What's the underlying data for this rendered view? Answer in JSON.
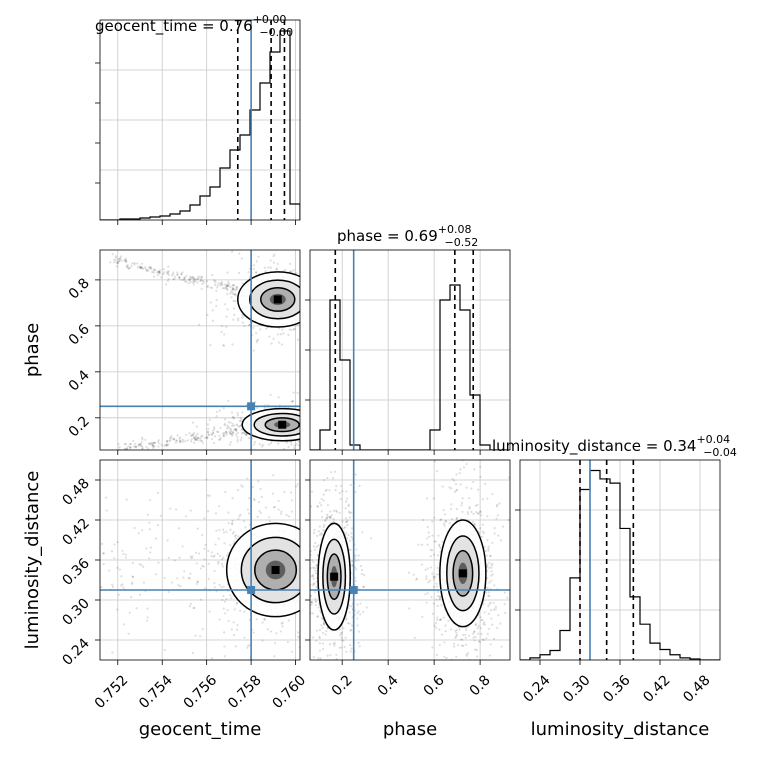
{
  "chart_data": {
    "type": "corner",
    "parameters": [
      "geocent_time",
      "phase",
      "luminosity_distance"
    ],
    "truths": {
      "geocent_time": 0.758,
      "phase": 0.25,
      "luminosity_distance": 0.315
    },
    "truth_color": "#4682b4",
    "titles": [
      {
        "param": "geocent_time",
        "label": "geocent_time",
        "median": "0.76",
        "plus": "+0.00",
        "minus": "−0.00"
      },
      {
        "param": "phase",
        "label": "phase",
        "median": "0.69",
        "plus": "+0.08",
        "minus": "−0.52"
      },
      {
        "param": "luminosity_distance",
        "label": "luminosity_distance",
        "median": "0.34",
        "plus": "+0.04",
        "minus": "−0.04"
      }
    ],
    "axes": {
      "geocent_time": {
        "range": [
          0.7512,
          0.7602
        ],
        "ticks": [
          0.752,
          0.754,
          0.756,
          0.758,
          0.76
        ],
        "tick_labels": [
          "0.752",
          "0.754",
          "0.756",
          "0.758",
          "0.760"
        ]
      },
      "phase": {
        "range": [
          0.06,
          0.93
        ],
        "ticks": [
          0.2,
          0.4,
          0.6,
          0.8
        ],
        "tick_labels": [
          "0.2",
          "0.4",
          "0.6",
          "0.8"
        ]
      },
      "luminosity_distance": {
        "range": [
          0.21,
          0.51
        ],
        "ticks": [
          0.24,
          0.3,
          0.36,
          0.42,
          0.48
        ],
        "tick_labels": [
          "0.24",
          "0.30",
          "0.36",
          "0.42",
          "0.48"
        ]
      }
    },
    "histograms": {
      "geocent_time": {
        "edges": [
          0.7512,
          0.75165,
          0.7521,
          0.75255,
          0.753,
          0.75345,
          0.7539,
          0.75435,
          0.7548,
          0.75525,
          0.7557,
          0.75615,
          0.7566,
          0.75705,
          0.7575,
          0.75795,
          0.7584,
          0.75885,
          0.7593,
          0.75975,
          0.7602
        ],
        "counts": [
          0,
          0,
          1,
          1,
          2,
          3,
          4,
          6,
          9,
          15,
          24,
          33,
          52,
          70,
          85,
          110,
          137,
          168,
          189,
          16
        ],
        "ymax": 200,
        "quantiles": [
          0.7574,
          0.7589,
          0.7595
        ]
      },
      "phase": {
        "edges": [
          0.06,
          0.1035,
          0.147,
          0.1905,
          0.234,
          0.2775,
          0.321,
          0.3645,
          0.408,
          0.4515,
          0.495,
          0.5385,
          0.582,
          0.6255,
          0.669,
          0.7125,
          0.756,
          0.7995,
          0.843,
          0.8865,
          0.93
        ],
        "counts": [
          0,
          20,
          150,
          90,
          5,
          0,
          0,
          0,
          0,
          0,
          0,
          0,
          20,
          150,
          165,
          140,
          55,
          5,
          0,
          0
        ],
        "ymax": 200,
        "quantiles": [
          0.17,
          0.69,
          0.77
        ]
      },
      "luminosity_distance": {
        "edges": [
          0.21,
          0.225,
          0.24,
          0.255,
          0.27,
          0.285,
          0.3,
          0.315,
          0.33,
          0.345,
          0.36,
          0.375,
          0.39,
          0.405,
          0.42,
          0.435,
          0.45,
          0.465,
          0.48,
          0.495,
          0.51
        ],
        "counts": [
          0,
          2,
          5,
          9,
          28,
          78,
          162,
          180,
          172,
          168,
          125,
          60,
          34,
          16,
          10,
          5,
          2,
          1,
          0,
          0
        ],
        "ymax": 190,
        "quantiles": [
          0.3,
          0.34,
          0.38
        ]
      }
    },
    "densities": [
      {
        "x": "geocent_time",
        "y": "phase",
        "blobs": [
          {
            "cx": 0.7592,
            "cy": 0.715,
            "sx": 0.0009,
            "sy": 0.06
          },
          {
            "cx": 0.7594,
            "cy": 0.17,
            "sx": 0.0009,
            "sy": 0.035
          }
        ]
      },
      {
        "x": "geocent_time",
        "y": "luminosity_distance",
        "blobs": [
          {
            "cx": 0.7591,
            "cy": 0.345,
            "sx": 0.0011,
            "sy": 0.035
          }
        ]
      },
      {
        "x": "phase",
        "y": "luminosity_distance",
        "blobs": [
          {
            "cx": 0.165,
            "cy": 0.335,
            "sx": 0.035,
            "sy": 0.04
          },
          {
            "cx": 0.725,
            "cy": 0.34,
            "sx": 0.05,
            "sy": 0.04
          }
        ]
      }
    ]
  }
}
